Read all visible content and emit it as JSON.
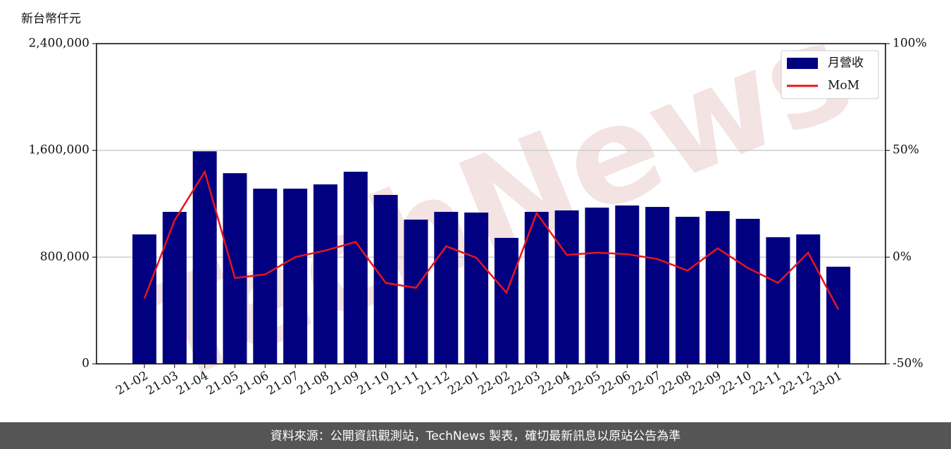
{
  "chart_data": {
    "type": "bar-line",
    "y_label": "新台幣仟元",
    "watermark": "TechNews",
    "footer": "資料來源：公開資訊觀測站，TechNews 製表，確切最新訊息以原站公告為準",
    "categories": [
      "21-02",
      "21-03",
      "21-04",
      "21-05",
      "21-06",
      "21-07",
      "21-08",
      "21-09",
      "21-10",
      "21-11",
      "21-12",
      "22-01",
      "22-02",
      "22-03",
      "22-04",
      "22-05",
      "22-06",
      "22-07",
      "22-08",
      "22-09",
      "22-10",
      "22-11",
      "22-12",
      "23-01"
    ],
    "series": [
      {
        "name": "月營收",
        "type": "bar",
        "color": "#000080",
        "axis": "y",
        "values": [
          970000,
          1139000,
          1593000,
          1429000,
          1313000,
          1313000,
          1345000,
          1440000,
          1266000,
          1081000,
          1139000,
          1134000,
          944000,
          1139000,
          1150000,
          1171000,
          1187000,
          1176000,
          1102000,
          1145000,
          1087000,
          949000,
          970000,
          728000
        ]
      },
      {
        "name": "MoM",
        "type": "line",
        "color": "#e8141c",
        "axis": "y2",
        "values": [
          -19.4,
          17.2,
          40,
          -9.8,
          -8.1,
          0,
          3.1,
          7.1,
          -12.1,
          -14.4,
          5.1,
          -0.3,
          -16.7,
          20.6,
          1.0,
          2.1,
          1.4,
          -0.9,
          -6.3,
          4.1,
          -5.1,
          -12.1,
          2.1,
          -24.6
        ]
      }
    ],
    "ylim": [
      0,
      2400000
    ],
    "yticks": [
      0,
      {
        "value": 800000,
        "label": "800,000"
      },
      {
        "value": 1600000,
        "label": "1,600,000"
      },
      {
        "value": 2400000,
        "label": "2,400,000"
      }
    ],
    "y2lim": [
      -50,
      100
    ],
    "y2ticks": [
      {
        "value": -50,
        "label": "-50%"
      },
      {
        "value": 0,
        "label": "0%"
      },
      {
        "value": 50,
        "label": "50%"
      },
      {
        "value": 100,
        "label": "100%"
      }
    ],
    "grid": true,
    "legend": "upper right"
  }
}
